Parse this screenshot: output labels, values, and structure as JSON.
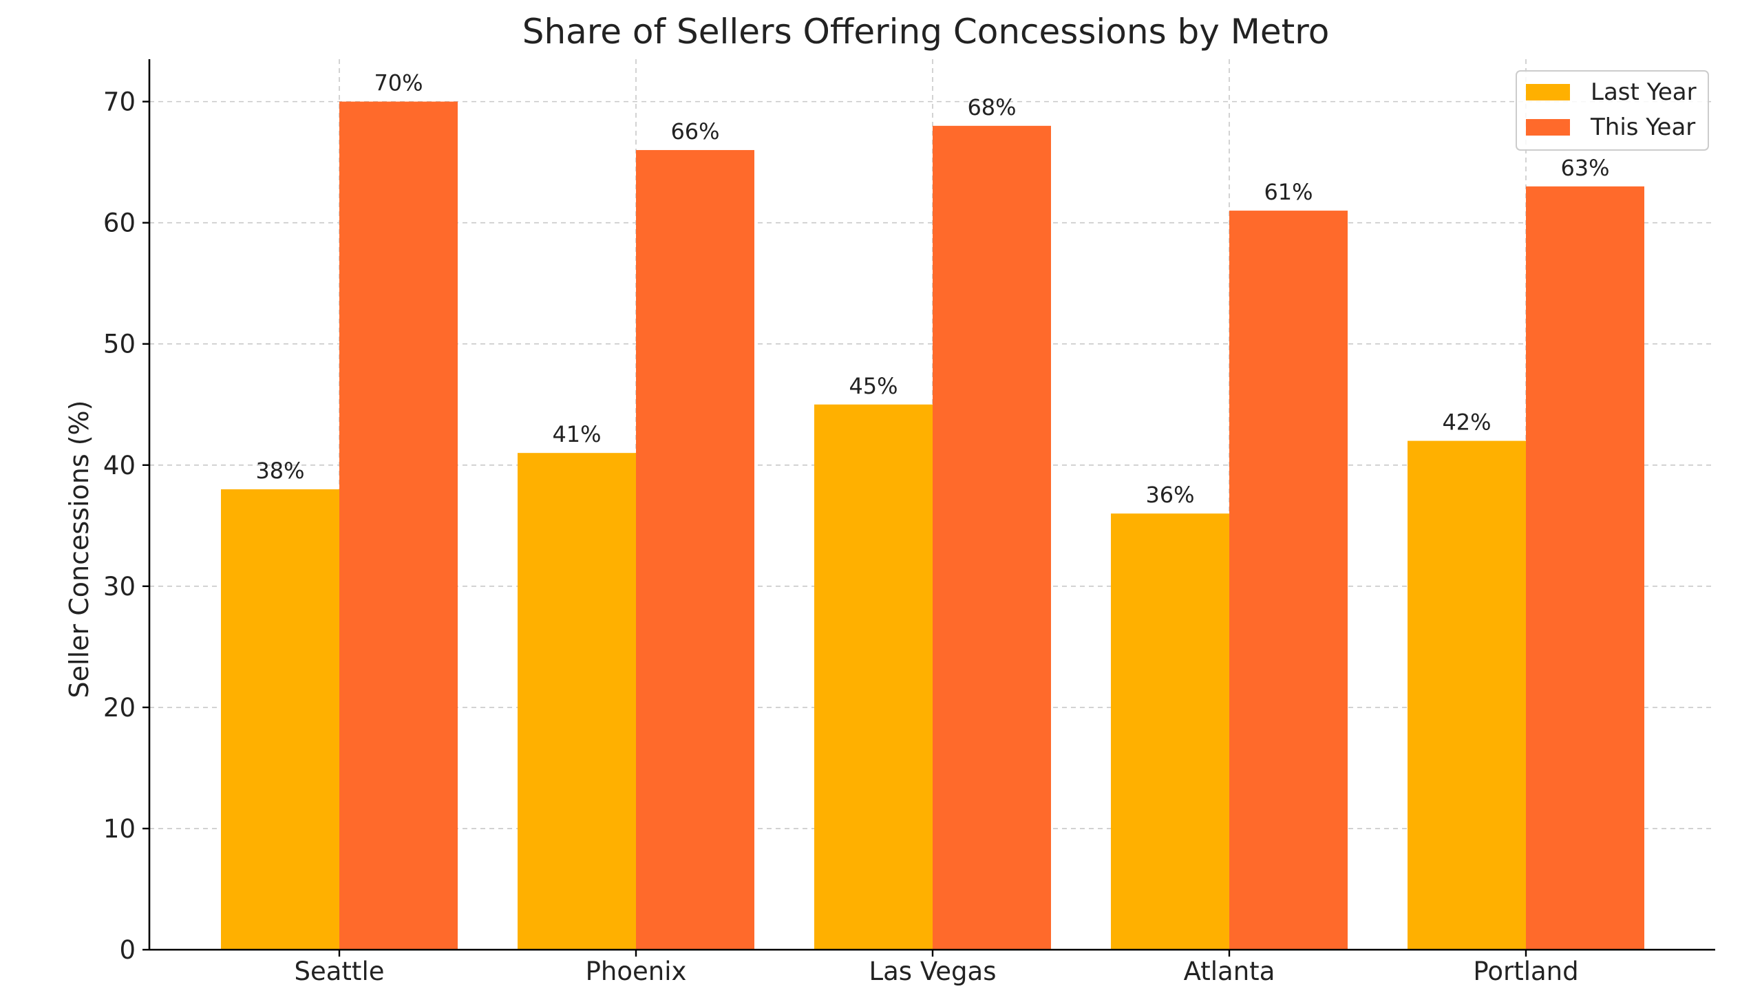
{
  "chart_data": {
    "type": "bar",
    "title": "Share of Sellers Offering Concessions by Metro",
    "xlabel": "",
    "ylabel": "Seller Concessions (%)",
    "categories": [
      "Seattle",
      "Phoenix",
      "Las Vegas",
      "Atlanta",
      "Portland"
    ],
    "series": [
      {
        "name": "Last Year",
        "color": "#FFB000",
        "values": [
          38,
          41,
          45,
          36,
          42
        ],
        "labels": [
          "38%",
          "41%",
          "45%",
          "36%",
          "42%"
        ]
      },
      {
        "name": "This Year",
        "color": "#FF6A2B",
        "values": [
          70,
          66,
          68,
          61,
          63
        ],
        "labels": [
          "70%",
          "66%",
          "68%",
          "61%",
          "63%"
        ]
      }
    ],
    "ylim": [
      0,
      73.5
    ],
    "yticks": [
      0,
      10,
      20,
      30,
      40,
      50,
      60,
      70
    ],
    "ytick_labels": [
      "0",
      "10",
      "20",
      "30",
      "40",
      "50",
      "60",
      "70"
    ],
    "grid": true,
    "legend_position": "top-right"
  }
}
